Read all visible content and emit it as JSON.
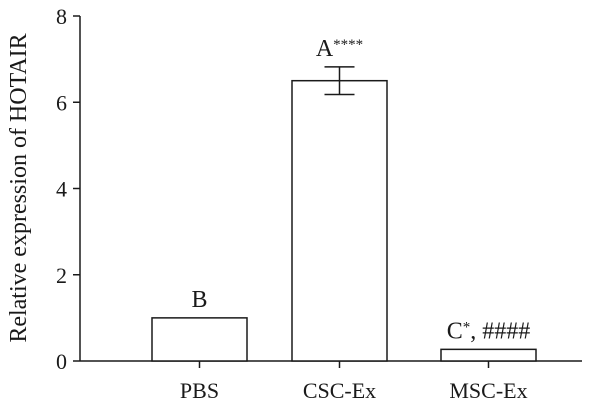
{
  "chart_data": {
    "type": "bar",
    "categories": [
      "PBS",
      "CSC-Ex",
      "MSC-Ex"
    ],
    "values": [
      1.0,
      6.5,
      0.27
    ],
    "error": [
      0.0,
      0.32,
      0.0
    ],
    "ylabel": "Relative expression of HOTAIR",
    "xlabel": "",
    "ylim": [
      0,
      8
    ],
    "yticks": [
      0,
      2,
      4,
      6,
      8
    ],
    "grid": false,
    "annotations": [
      {
        "main": "B",
        "sup": ""
      },
      {
        "main": "A",
        "sup": "****"
      },
      {
        "main": "C",
        "sup": "*",
        "rest": ", ####"
      }
    ],
    "colors": {
      "bar_fill": "#ffffff",
      "bar_stroke": "#1a1a1a",
      "axis": "#1a1a1a"
    }
  }
}
